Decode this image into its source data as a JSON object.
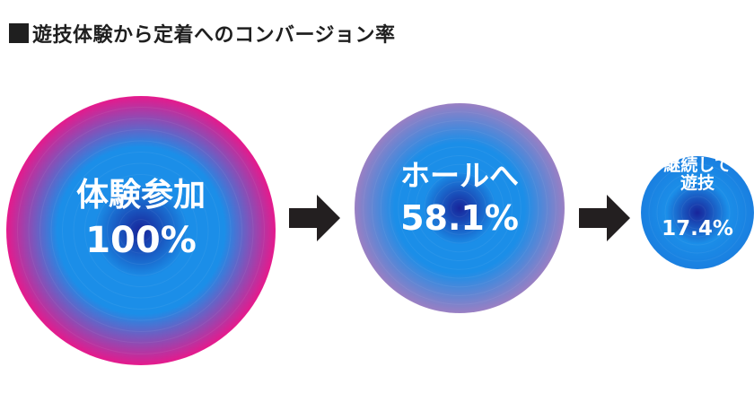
{
  "title_prefix": "■",
  "title_text": "遊技体験から定着へのコンバージョン率",
  "chart_data": {
    "type": "bubble-funnel",
    "title": "遊技体験から定着へのコンバージョン率",
    "stages": [
      {
        "label_lines": [
          "体験参加"
        ],
        "value": 100,
        "value_text": "100%",
        "ring_color": "#e6198c"
      },
      {
        "label_lines": [
          "ホールへ"
        ],
        "value": 58.1,
        "value_text": "58.1%",
        "ring_color": "#9a7fc3"
      },
      {
        "label_lines": [
          "継続して",
          "遊技"
        ],
        "value": 17.4,
        "value_text": "17.4%",
        "ring_color": "#1a7fe0"
      }
    ],
    "connector": "arrow-right",
    "connector_color": "#231f20",
    "center_color": "#18249a",
    "mid_color": "#1b8ee8"
  }
}
